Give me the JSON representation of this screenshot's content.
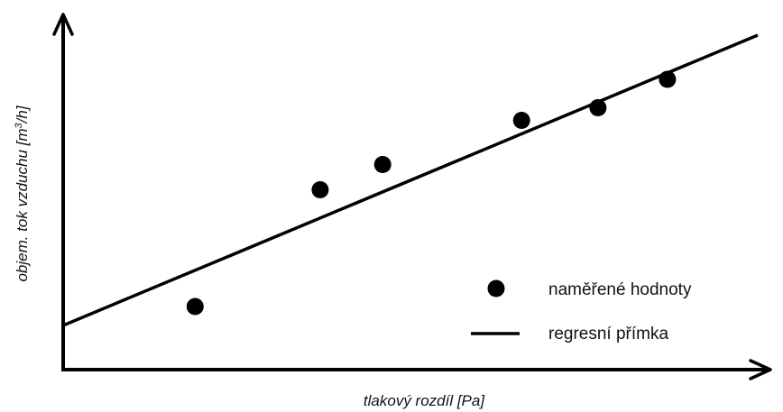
{
  "chart_data": {
    "type": "scatter",
    "title": "",
    "xlabel": "tlakový rozdíl [Pa]",
    "ylabel_prefix": "objem. tok vzduchu [m",
    "ylabel_sup": "3",
    "ylabel_suffix": "/h]",
    "xlim": [
      0,
      100
    ],
    "ylim": [
      0,
      100
    ],
    "grid": false,
    "legend_position": "bottom-right",
    "series": [
      {
        "name": "naměřené hodnoty",
        "kind": "scatter",
        "x": [
          19,
          37,
          46,
          66,
          77,
          87
        ],
        "y": [
          20,
          57,
          65,
          79,
          83,
          92
        ]
      },
      {
        "name": "regresní přímka",
        "kind": "line",
        "x": [
          0,
          100
        ],
        "y": [
          14,
          106
        ]
      }
    ]
  }
}
